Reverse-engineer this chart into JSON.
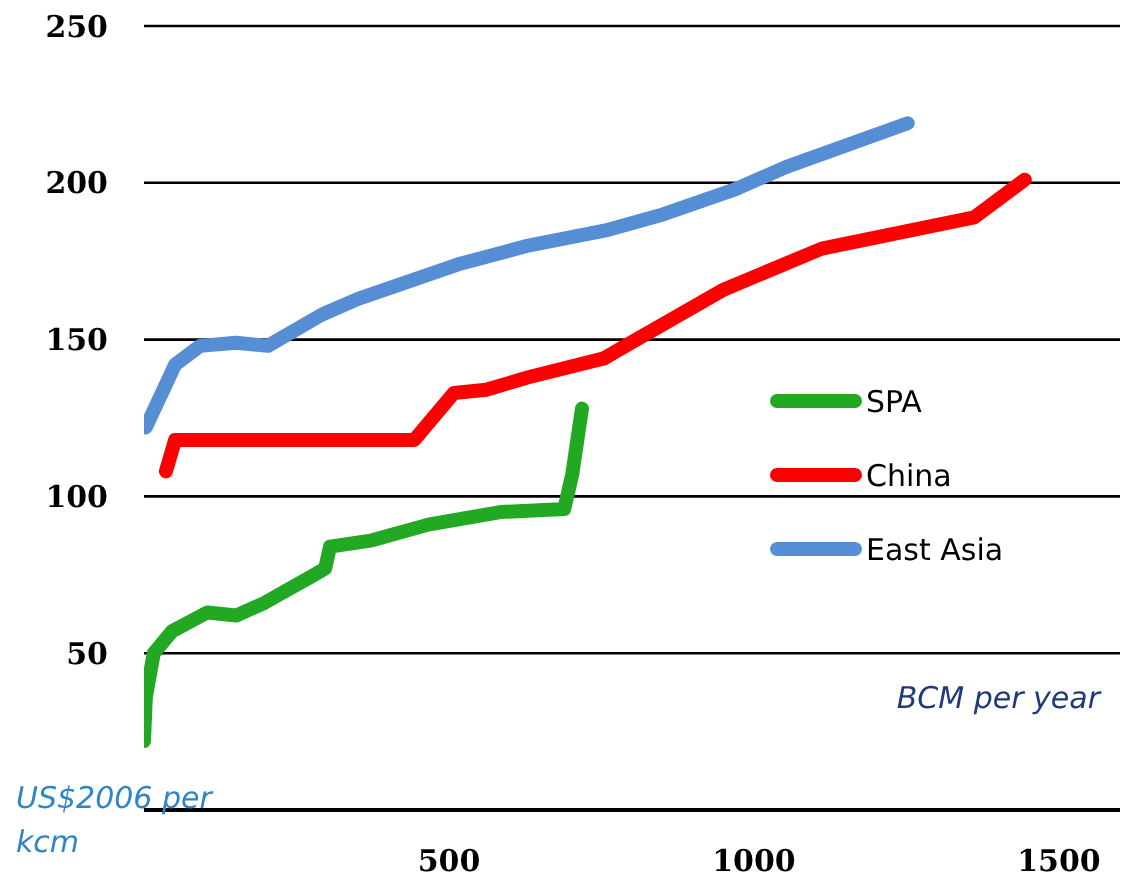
{
  "chart_data": {
    "type": "line",
    "xlabel": "BCM per year",
    "annotations": [
      "US$2006 per kcm"
    ],
    "xlim": [
      0,
      1600
    ],
    "xticks": [
      500,
      1000,
      1500
    ],
    "ylim": [
      0,
      250
    ],
    "yticks": [
      50,
      100,
      150,
      200,
      250
    ],
    "grid": "y",
    "legend": "right",
    "marker": "none",
    "line_style": "solid",
    "series": [
      {
        "name": "SPA",
        "color": "#22a822",
        "x": [
          0,
          3,
          16,
          46,
          104,
          151,
          197,
          279,
          297,
          305,
          374,
          466,
          584,
          689,
          702,
          718
        ],
        "values": [
          22,
          36,
          50,
          57,
          63,
          62,
          66,
          75,
          77,
          84,
          86,
          91,
          95,
          96,
          107,
          128
        ]
      },
      {
        "name": "China",
        "color": "#ff0000",
        "x": [
          36,
          51,
          443,
          508,
          561,
          630,
          754,
          807,
          951,
          1111,
          1361,
          1444
        ],
        "values": [
          108,
          118,
          118,
          133,
          134,
          138,
          144,
          150,
          166,
          179,
          189,
          201
        ]
      },
      {
        "name": "East Asia",
        "color": "#558ed5",
        "x": [
          3,
          51,
          92,
          151,
          203,
          292,
          351,
          515,
          630,
          761,
          852,
          970,
          1052,
          1252
        ],
        "values": [
          122,
          142,
          148,
          149,
          148,
          158,
          163,
          174,
          180,
          185,
          190,
          198,
          205,
          219
        ]
      }
    ]
  }
}
